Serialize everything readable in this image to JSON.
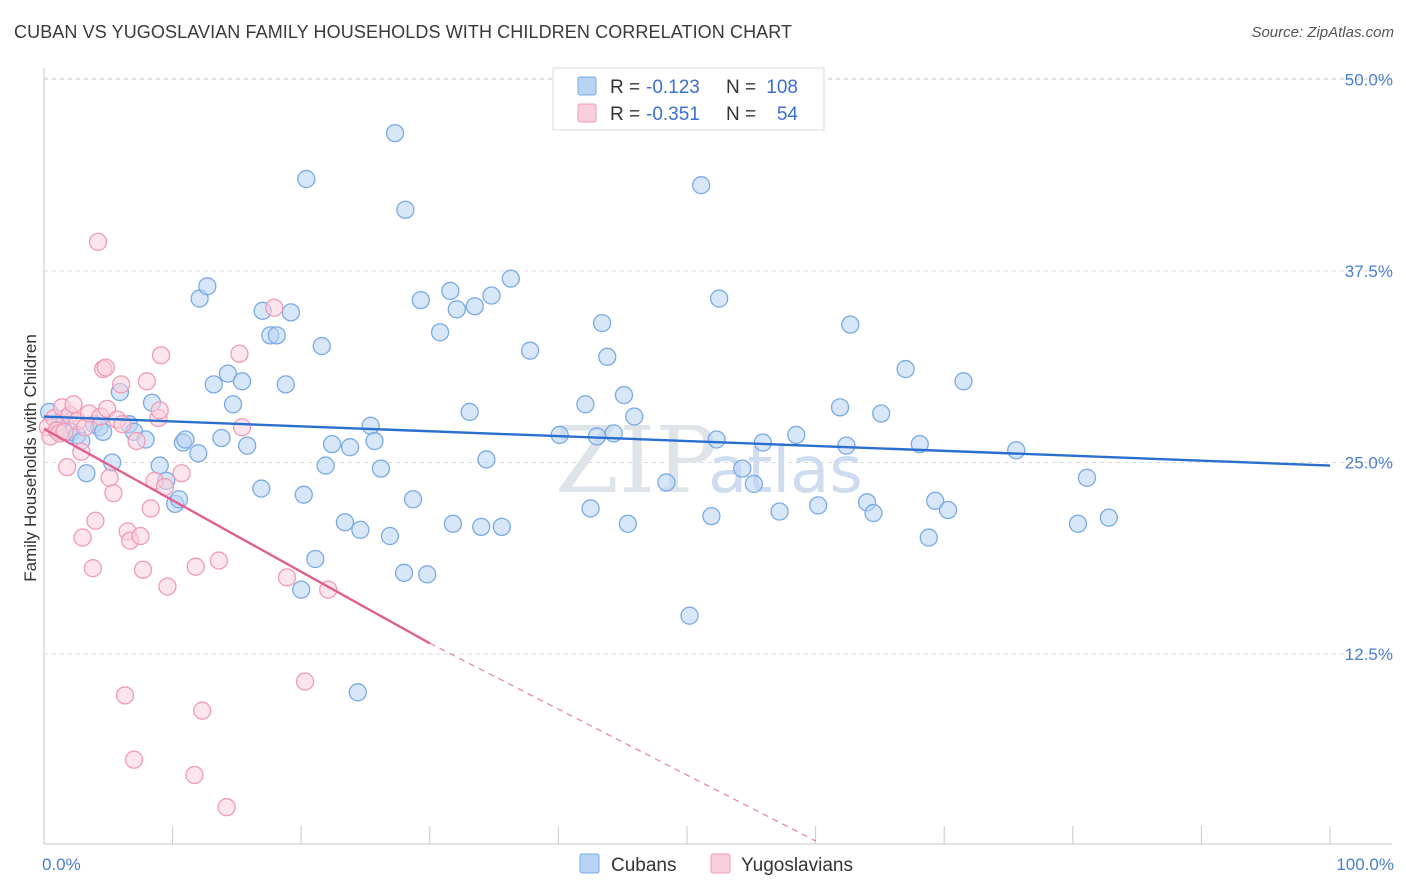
{
  "title": "CUBAN VS YUGOSLAVIAN FAMILY HOUSEHOLDS WITH CHILDREN CORRELATION CHART",
  "source": "Source: ZipAtlas.com",
  "watermark": {
    "zip": "ZIP",
    "atlas": "atlas"
  },
  "legend_box": {
    "rows": [
      {
        "r_label": "R =",
        "r_value": "-0.123",
        "n_label": "N =",
        "n_value": "108",
        "color": "#a9c8f0"
      },
      {
        "r_label": "R =",
        "r_value": "-0.351",
        "n_label": "N =",
        "n_value": "54",
        "color": "#f5b8cb"
      }
    ]
  },
  "chart_data": {
    "type": "scatter",
    "title": "CUBAN VS YUGOSLAVIAN FAMILY HOUSEHOLDS WITH CHILDREN CORRELATION CHART",
    "xlabel": "",
    "ylabel": "Family Households with Children",
    "xlim": [
      0,
      100
    ],
    "ylim": [
      0,
      52
    ],
    "x_tick_labels": [
      "0.0%",
      "100.0%"
    ],
    "y_ticks": [
      12.5,
      25.0,
      37.5,
      50.0
    ],
    "y_tick_labels": [
      "12.5%",
      "25.0%",
      "37.5%",
      "50.0%"
    ],
    "grid": "horizontal dashed",
    "legend_position": "top-center and bottom",
    "series": [
      {
        "name": "Cubans",
        "color": "#7aaae6",
        "fill": "#b8d3f3",
        "trend": {
          "x": [
            0,
            100
          ],
          "y": [
            28.0,
            24.8
          ],
          "color": "#2a6fce"
        },
        "points": [
          [
            0.4,
            28.3
          ],
          [
            1.2,
            27.6
          ],
          [
            1.6,
            27.9
          ],
          [
            2.1,
            27.0
          ],
          [
            2.6,
            26.8
          ],
          [
            2.9,
            26.4
          ],
          [
            3.3,
            24.3
          ],
          [
            3.9,
            27.5
          ],
          [
            4.3,
            27.3
          ],
          [
            4.6,
            27.0
          ],
          [
            5.3,
            25.0
          ],
          [
            5.9,
            29.6
          ],
          [
            6.6,
            27.5
          ],
          [
            7.0,
            27.0
          ],
          [
            7.9,
            26.5
          ],
          [
            8.4,
            28.9
          ],
          [
            9.0,
            24.8
          ],
          [
            9.5,
            23.8
          ],
          [
            10.2,
            22.3
          ],
          [
            10.5,
            22.6
          ],
          [
            10.8,
            26.3
          ],
          [
            11.0,
            26.5
          ],
          [
            12.0,
            25.6
          ],
          [
            12.1,
            35.7
          ],
          [
            12.7,
            36.5
          ],
          [
            13.2,
            30.1
          ],
          [
            13.8,
            26.6
          ],
          [
            14.3,
            30.8
          ],
          [
            14.7,
            28.8
          ],
          [
            15.4,
            30.3
          ],
          [
            15.8,
            26.1
          ],
          [
            16.9,
            23.3
          ],
          [
            17.0,
            34.9
          ],
          [
            17.6,
            33.3
          ],
          [
            18.1,
            33.3
          ],
          [
            18.8,
            30.1
          ],
          [
            19.2,
            34.8
          ],
          [
            20.0,
            16.7
          ],
          [
            20.2,
            22.9
          ],
          [
            20.4,
            43.5
          ],
          [
            21.1,
            18.7
          ],
          [
            21.6,
            32.6
          ],
          [
            21.9,
            24.8
          ],
          [
            22.4,
            26.2
          ],
          [
            23.4,
            21.1
          ],
          [
            23.8,
            26.0
          ],
          [
            24.4,
            10.0
          ],
          [
            24.6,
            20.6
          ],
          [
            25.4,
            27.4
          ],
          [
            25.7,
            26.4
          ],
          [
            26.2,
            24.6
          ],
          [
            26.9,
            20.2
          ],
          [
            27.3,
            46.5
          ],
          [
            28.0,
            17.8
          ],
          [
            28.1,
            41.5
          ],
          [
            28.7,
            22.6
          ],
          [
            29.3,
            35.6
          ],
          [
            29.8,
            17.7
          ],
          [
            30.8,
            33.5
          ],
          [
            31.6,
            36.2
          ],
          [
            31.8,
            21.0
          ],
          [
            32.1,
            35.0
          ],
          [
            33.1,
            28.3
          ],
          [
            34.0,
            20.8
          ],
          [
            34.4,
            25.2
          ],
          [
            34.8,
            35.9
          ],
          [
            35.6,
            20.8
          ],
          [
            36.3,
            37.0
          ],
          [
            37.8,
            32.3
          ],
          [
            40.1,
            26.8
          ],
          [
            42.1,
            28.8
          ],
          [
            42.5,
            22.0
          ],
          [
            43.0,
            26.7
          ],
          [
            43.4,
            34.1
          ],
          [
            43.8,
            31.9
          ],
          [
            44.3,
            26.9
          ],
          [
            45.1,
            29.4
          ],
          [
            45.4,
            21.0
          ],
          [
            45.9,
            28.0
          ],
          [
            48.4,
            23.7
          ],
          [
            50.2,
            15.0
          ],
          [
            51.1,
            43.1
          ],
          [
            51.9,
            21.5
          ],
          [
            52.3,
            26.5
          ],
          [
            52.5,
            35.7
          ],
          [
            54.3,
            24.6
          ],
          [
            55.2,
            23.6
          ],
          [
            55.9,
            26.3
          ],
          [
            57.2,
            21.8
          ],
          [
            58.5,
            26.8
          ],
          [
            60.2,
            22.2
          ],
          [
            61.9,
            28.6
          ],
          [
            62.4,
            26.1
          ],
          [
            62.7,
            34.0
          ],
          [
            64.0,
            22.4
          ],
          [
            64.5,
            21.7
          ],
          [
            65.1,
            28.2
          ],
          [
            67.0,
            31.1
          ],
          [
            68.1,
            26.2
          ],
          [
            68.8,
            20.1
          ],
          [
            69.3,
            22.5
          ],
          [
            70.3,
            21.9
          ],
          [
            71.5,
            30.3
          ],
          [
            75.6,
            25.8
          ],
          [
            80.4,
            21.0
          ],
          [
            81.1,
            24.0
          ],
          [
            82.8,
            21.4
          ],
          [
            33.5,
            35.2
          ]
        ]
      },
      {
        "name": "Yugoslavians",
        "color": "#f19bb6",
        "fill": "#f9cfdd",
        "trend": {
          "x": [
            0,
            30
          ],
          "y": [
            27.2,
            13.2
          ],
          "dashed_to": [
            60,
            0.3
          ],
          "color": "#e0608f"
        },
        "points": [
          [
            0.3,
            27.3
          ],
          [
            0.5,
            26.7
          ],
          [
            0.8,
            27.9
          ],
          [
            1.0,
            27.1
          ],
          [
            1.2,
            26.9
          ],
          [
            1.4,
            28.6
          ],
          [
            1.6,
            27.0
          ],
          [
            1.8,
            24.7
          ],
          [
            2.0,
            28.1
          ],
          [
            2.3,
            28.8
          ],
          [
            2.6,
            27.7
          ],
          [
            2.9,
            25.7
          ],
          [
            3.2,
            27.3
          ],
          [
            3.5,
            28.2
          ],
          [
            3.8,
            18.1
          ],
          [
            4.0,
            21.2
          ],
          [
            4.2,
            39.4
          ],
          [
            4.4,
            28.0
          ],
          [
            4.6,
            31.1
          ],
          [
            4.9,
            28.5
          ],
          [
            5.1,
            24.0
          ],
          [
            5.4,
            23.0
          ],
          [
            5.7,
            27.8
          ],
          [
            6.0,
            30.1
          ],
          [
            6.3,
            9.8
          ],
          [
            6.5,
            20.5
          ],
          [
            6.7,
            19.9
          ],
          [
            7.0,
            5.6
          ],
          [
            7.2,
            26.4
          ],
          [
            7.5,
            20.2
          ],
          [
            7.7,
            18.0
          ],
          [
            8.0,
            30.3
          ],
          [
            8.3,
            22.0
          ],
          [
            8.6,
            23.8
          ],
          [
            8.9,
            27.9
          ],
          [
            9.1,
            32.0
          ],
          [
            9.4,
            23.4
          ],
          [
            9.6,
            16.9
          ],
          [
            10.7,
            24.3
          ],
          [
            11.7,
            4.6
          ],
          [
            12.3,
            8.8
          ],
          [
            13.6,
            18.6
          ],
          [
            14.2,
            2.5
          ],
          [
            15.2,
            32.1
          ],
          [
            15.4,
            27.3
          ],
          [
            17.9,
            35.1
          ],
          [
            18.9,
            17.5
          ],
          [
            20.3,
            10.7
          ],
          [
            22.1,
            16.7
          ],
          [
            4.8,
            31.2
          ],
          [
            6.1,
            27.5
          ],
          [
            9.0,
            28.4
          ],
          [
            3.0,
            20.1
          ],
          [
            11.8,
            18.2
          ]
        ]
      }
    ]
  },
  "bottom_legend": [
    {
      "label": "Cubans",
      "color": "#b8d3f3"
    },
    {
      "label": "Yugoslavians",
      "color": "#f9cfdd"
    }
  ]
}
